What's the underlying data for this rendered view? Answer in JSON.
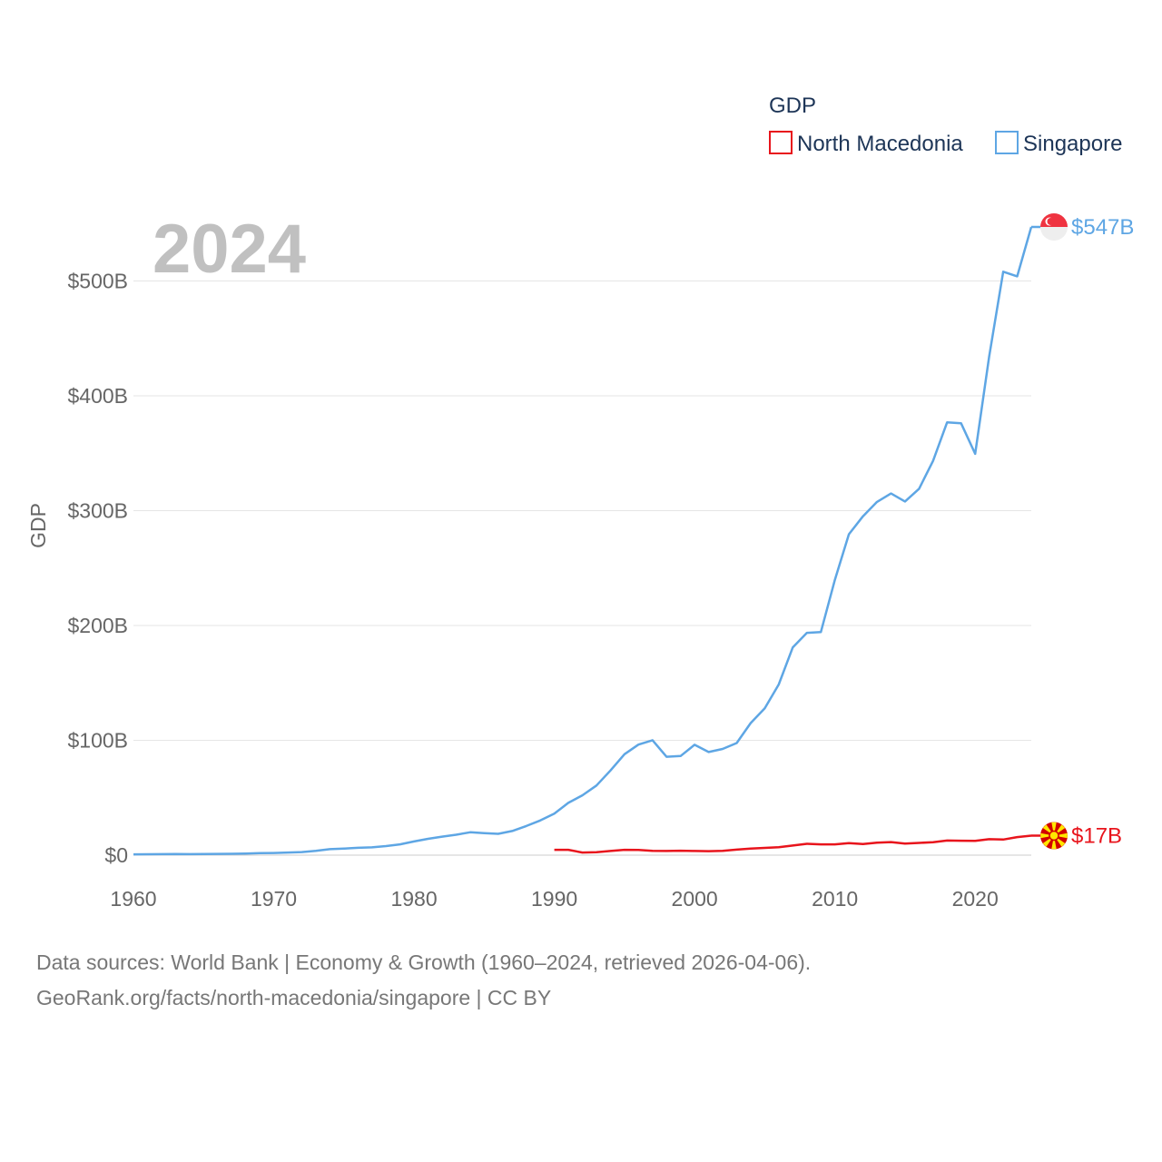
{
  "chart_data": {
    "type": "line",
    "year_label": "2024",
    "ylabel": "GDP",
    "xlim": [
      1960,
      2024
    ],
    "ylim": [
      0,
      547
    ],
    "x_ticks": [
      1960,
      1970,
      1980,
      1990,
      2000,
      2010,
      2020
    ],
    "x_tick_labels": [
      "1960",
      "1970",
      "1980",
      "1990",
      "2000",
      "2010",
      "2020"
    ],
    "y_ticks": [
      0,
      100,
      200,
      300,
      400,
      500
    ],
    "y_tick_labels": [
      "$0",
      "$100B",
      "$200B",
      "$300B",
      "$400B",
      "$500B"
    ],
    "legend": {
      "title": "GDP",
      "position": "top-right",
      "items": [
        {
          "name": "North Macedonia",
          "color": "#e8141c"
        },
        {
          "name": "Singapore",
          "color": "#5ea6e4"
        }
      ]
    },
    "series": [
      {
        "name": "Singapore",
        "color": "#5ea6e4",
        "end_label": "$547B",
        "x": [
          1960,
          1961,
          1962,
          1963,
          1964,
          1965,
          1966,
          1967,
          1968,
          1969,
          1970,
          1971,
          1972,
          1973,
          1974,
          1975,
          1976,
          1977,
          1978,
          1979,
          1980,
          1981,
          1982,
          1983,
          1984,
          1985,
          1986,
          1987,
          1988,
          1989,
          1990,
          1991,
          1992,
          1993,
          1994,
          1995,
          1996,
          1997,
          1998,
          1999,
          2000,
          2001,
          2002,
          2003,
          2004,
          2005,
          2006,
          2007,
          2008,
          2009,
          2010,
          2011,
          2012,
          2013,
          2014,
          2015,
          2016,
          2017,
          2018,
          2019,
          2020,
          2021,
          2022,
          2023,
          2024
        ],
        "values": [
          0.7,
          0.8,
          0.9,
          1.0,
          0.9,
          1.0,
          1.1,
          1.2,
          1.4,
          1.7,
          1.9,
          2.3,
          2.7,
          3.7,
          5.2,
          5.7,
          6.4,
          6.8,
          7.9,
          9.4,
          11.9,
          14.2,
          16.1,
          17.8,
          19.9,
          19.2,
          18.6,
          21.0,
          25.4,
          30.2,
          36.1,
          45.5,
          52.1,
          60.6,
          73.7,
          87.9,
          96.3,
          100.1,
          85.7,
          86.3,
          96.1,
          89.8,
          92.5,
          97.6,
          115.0,
          127.8,
          148.6,
          180.9,
          193.6,
          194.2,
          239.8,
          279.4,
          295.1,
          307.6,
          314.9,
          308.0,
          319.0,
          343.3,
          376.9,
          376.0,
          349.5,
          434.1,
          508.0,
          504.0,
          547.0
        ]
      },
      {
        "name": "North Macedonia",
        "color": "#e8141c",
        "end_label": "$17B",
        "x": [
          1990,
          1991,
          1992,
          1993,
          1994,
          1995,
          1996,
          1997,
          1998,
          1999,
          2000,
          2001,
          2002,
          2003,
          2004,
          2005,
          2006,
          2007,
          2008,
          2009,
          2010,
          2011,
          2012,
          2013,
          2014,
          2015,
          2016,
          2017,
          2018,
          2019,
          2020,
          2021,
          2022,
          2023,
          2024
        ],
        "values": [
          4.7,
          4.7,
          2.3,
          2.6,
          3.6,
          4.7,
          4.6,
          3.7,
          3.6,
          3.9,
          3.6,
          3.5,
          3.8,
          4.8,
          5.7,
          6.3,
          6.9,
          8.4,
          9.9,
          9.4,
          9.4,
          10.5,
          9.7,
          10.8,
          11.4,
          10.1,
          10.7,
          11.3,
          12.7,
          12.6,
          12.4,
          13.9,
          13.6,
          15.7,
          17.0
        ]
      }
    ]
  },
  "source": {
    "line1": "Data sources: World Bank | Economy & Growth (1960–2024, retrieved 2026-04-06).",
    "line2": "GeoRank.org/facts/north-macedonia/singapore | CC BY"
  }
}
